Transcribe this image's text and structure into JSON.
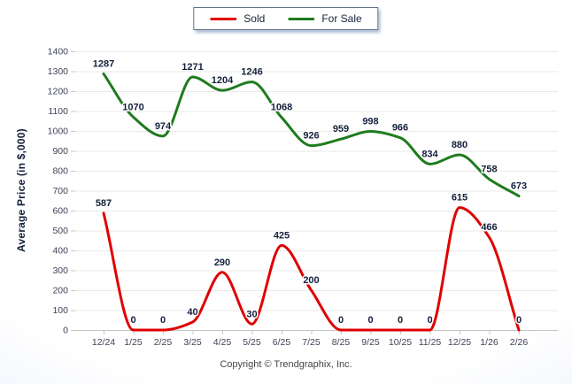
{
  "legend": {
    "items": [
      {
        "label": "Sold",
        "color": "#e00000"
      },
      {
        "label": "For Sale",
        "color": "#1e7b1e"
      }
    ]
  },
  "y_axis_title": "Average Price (in $,000)",
  "footer": {
    "copyright": "Copyright © Trendgraphix, Inc."
  },
  "chart_data": {
    "type": "line",
    "categories": [
      "12/24",
      "1/25",
      "2/25",
      "3/25",
      "4/25",
      "5/25",
      "6/25",
      "7/25",
      "8/25",
      "9/25",
      "10/25",
      "11/25",
      "12/25",
      "1/26",
      "2/26"
    ],
    "series": [
      {
        "name": "For Sale",
        "color": "#1e7b1e",
        "values": [
          1287,
          1070,
          974,
          1271,
          1204,
          1246,
          1068,
          926,
          959,
          998,
          966,
          834,
          880,
          758,
          673
        ]
      },
      {
        "name": "Sold",
        "color": "#e00000",
        "values": [
          587,
          0,
          0,
          40,
          290,
          30,
          425,
          200,
          0,
          0,
          0,
          0,
          615,
          466,
          0
        ]
      }
    ],
    "ylabel": "Average Price (in $,000)",
    "xlabel": "",
    "ylim": [
      0,
      1400
    ],
    "ytick_step": 100,
    "grid": true,
    "curve": "smooth",
    "data_labels": true,
    "legend_position": "top-center",
    "label_color": "#14213d",
    "tick_color": "#3e4257",
    "gridline_color": "#e9e9e9",
    "axis_color": "#c6c6c6"
  }
}
